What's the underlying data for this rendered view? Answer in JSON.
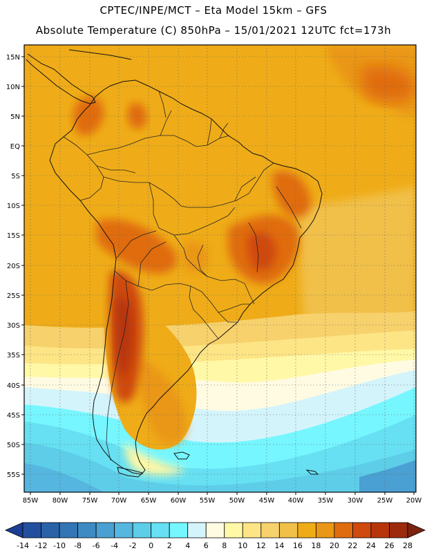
{
  "header": {
    "line1": "CPTEC/INPE/MCT –  Eta Model 15km – GFS",
    "line2": "Absolute Temperature (C) 850hPa – 15/01/2021 12UTC fct=173h"
  },
  "map": {
    "lat_labels": [
      "15N",
      "10N",
      "5N",
      "EQ",
      "5S",
      "10S",
      "15S",
      "20S",
      "25S",
      "30S",
      "35S",
      "40S",
      "45S",
      "50S",
      "55S"
    ],
    "lon_labels": [
      "85W",
      "80W",
      "75W",
      "70W",
      "65W",
      "60W",
      "55W",
      "50W",
      "45W",
      "40W",
      "35W",
      "30W",
      "25W",
      "20W"
    ]
  },
  "legend": {
    "ticks": [
      "-14",
      "-12",
      "-10",
      "-8",
      "-6",
      "-4",
      "-2",
      "0",
      "2",
      "4",
      "6",
      "8",
      "10",
      "12",
      "14",
      "16",
      "18",
      "20",
      "22",
      "24",
      "26",
      "28"
    ],
    "colors": [
      "#1b3f94",
      "#22509e",
      "#2a62a8",
      "#3375b5",
      "#3e8bc3",
      "#4aa0d2",
      "#55b6df",
      "#5ecde8",
      "#66e0f2",
      "#76f6ff",
      "#d4f4fb",
      "#fffbe2",
      "#fff8a6",
      "#fde586",
      "#f7d16c",
      "#f1c048",
      "#efac18",
      "#ea9616",
      "#e06c10",
      "#cf4a0c",
      "#b8350b",
      "#9c2a0c",
      "#7b2310"
    ]
  }
}
